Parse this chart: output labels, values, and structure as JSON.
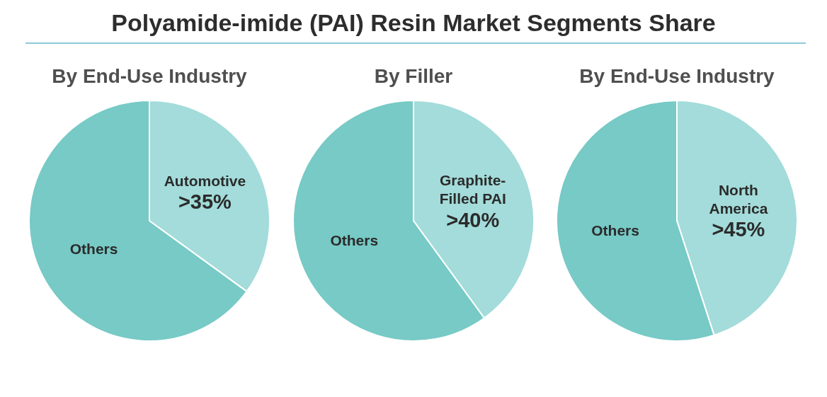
{
  "chart_data": [
    {
      "type": "other",
      "title": "Polyamide-imide (PAI) Resin Market Segments Share"
    },
    {
      "type": "pie",
      "title": "By End-Use Industry",
      "categories": [
        "Automotive",
        "Others"
      ],
      "values": [
        35,
        65
      ],
      "colors": [
        "#a3dcda",
        "#77cac6"
      ],
      "value_labels": [
        ">35%",
        null
      ]
    },
    {
      "type": "pie",
      "title": "By Filler",
      "categories": [
        "Graphite-\nFilled PAI",
        "Others"
      ],
      "values": [
        40,
        60
      ],
      "colors": [
        "#a3dcda",
        "#77cac6"
      ],
      "value_labels": [
        ">40%",
        null
      ]
    },
    {
      "type": "pie",
      "title": "By End-Use Industry",
      "categories": [
        "North\nAmerica",
        "Others"
      ],
      "values": [
        45,
        55
      ],
      "colors": [
        "#a3dcda",
        "#77cac6"
      ],
      "value_labels": [
        ">45%",
        null
      ]
    }
  ]
}
